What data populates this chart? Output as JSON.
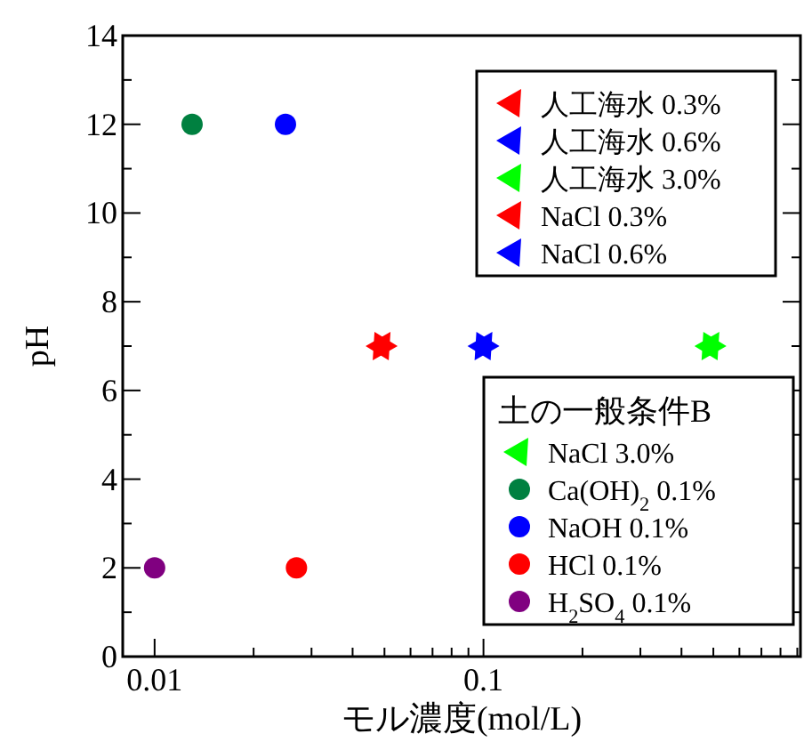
{
  "chart_data": {
    "type": "scatter",
    "xlabel": "モル濃度(mol/L)",
    "ylabel": "pH",
    "legend_title": "土の一般条件B",
    "log": "x",
    "legend": "right",
    "grid": false,
    "xlim": [
      0.008,
      0.92
    ],
    "xticks": [
      0.01,
      {
        "value": 0.02,
        "label": null
      },
      {
        "value": 0.03,
        "label": null
      },
      {
        "value": 0.04,
        "label": null
      },
      {
        "value": 0.05,
        "label": null
      },
      {
        "value": 0.06,
        "label": null
      },
      {
        "value": 0.07,
        "label": null
      },
      {
        "value": 0.08,
        "label": null
      },
      {
        "value": 0.09,
        "label": null
      },
      0.1,
      {
        "value": 0.2,
        "label": null
      },
      {
        "value": 0.3,
        "label": null
      },
      {
        "value": 0.4,
        "label": null
      },
      {
        "value": 0.5,
        "label": null
      },
      {
        "value": 0.6,
        "label": null
      },
      {
        "value": 0.7,
        "label": null
      },
      {
        "value": 0.8,
        "label": null
      },
      {
        "value": 0.9,
        "label": null
      }
    ],
    "ylim": [
      0,
      14
    ],
    "yticks": [
      0,
      {
        "value": 1,
        "label": null
      },
      2,
      {
        "value": 3,
        "label": null
      },
      4,
      {
        "value": 5,
        "label": null
      },
      6,
      {
        "value": 7,
        "label": null
      },
      8,
      {
        "value": 9,
        "label": null
      },
      10,
      {
        "value": 11,
        "label": null
      },
      12,
      {
        "value": 13,
        "label": null
      },
      14
    ],
    "series": [
      {
        "name": "人工海水 0.3%",
        "color": "#ff0000",
        "marker": "triangle",
        "x": [
          0.049
        ],
        "values": [
          7
        ]
      },
      {
        "name": "人工海水 0.6%",
        "color": "#0000ff",
        "marker": "triangle",
        "x": [
          0.1
        ],
        "values": [
          7
        ]
      },
      {
        "name": "人工海水 3.0%",
        "color": "#00ff00",
        "marker": "triangle",
        "x": [
          0.49
        ],
        "values": [
          7
        ]
      },
      {
        "name": "NaCl 0.3%",
        "color": "#ff0000",
        "marker": "triangle",
        "x": [
          0.049
        ],
        "values": [
          7
        ]
      },
      {
        "name": "NaCl 0.6%",
        "color": "#0000ff",
        "marker": "triangle",
        "x": [
          0.1
        ],
        "values": [
          7
        ]
      },
      {
        "name": "NaCl 3.0%",
        "color": "#00ff00",
        "marker": "triangle",
        "x": [
          0.49
        ],
        "values": [
          7
        ]
      },
      {
        "name": "Ca(OH)$_{2}$  0.1%",
        "color": "#008040",
        "marker": "circle",
        "x": [
          0.013
        ],
        "values": [
          12
        ]
      },
      {
        "name": "NaOH 0.1%",
        "color": "#0000ff",
        "marker": "circle",
        "x": [
          0.025
        ],
        "values": [
          12
        ]
      },
      {
        "name": "HCl 0.1%",
        "color": "#ff0000",
        "marker": "circle",
        "x": [
          0.027
        ],
        "values": [
          2
        ]
      },
      {
        "name": "H$_{2}$SO$_{4}$  0.1%",
        "color": "#800080",
        "marker": "circle",
        "x": [
          0.01
        ],
        "values": [
          2
        ]
      }
    ]
  }
}
